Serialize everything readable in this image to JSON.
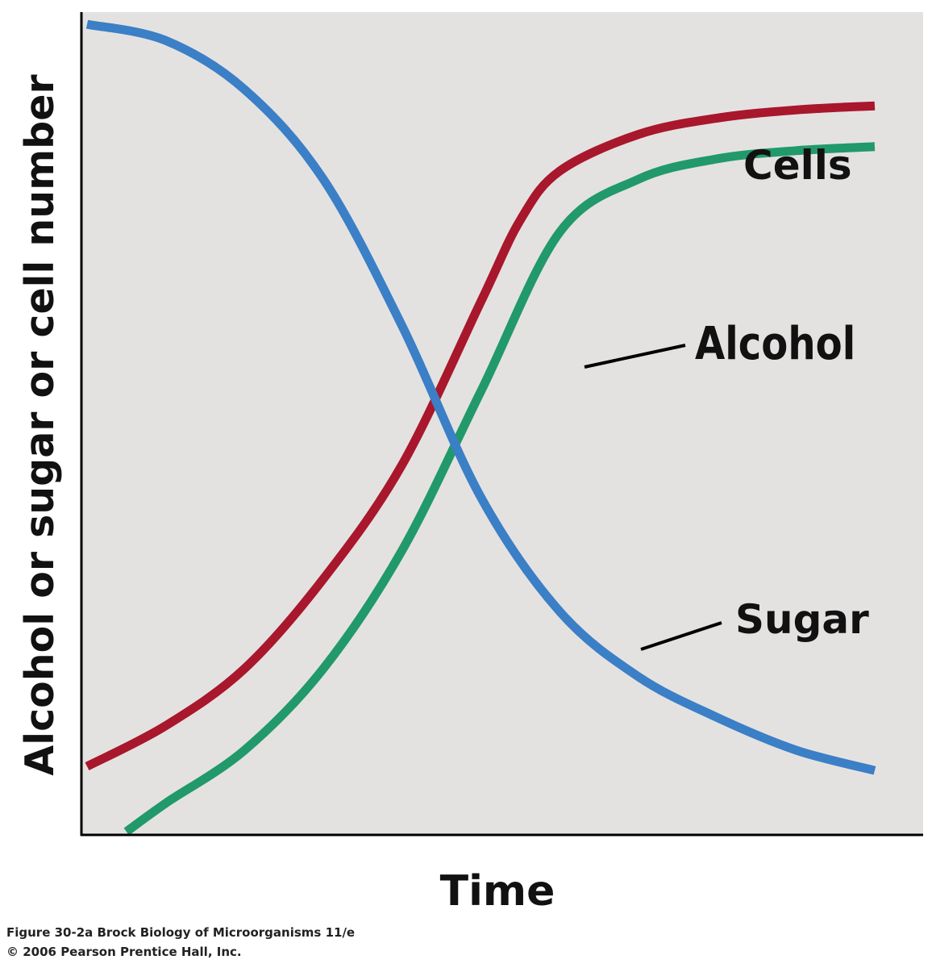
{
  "figure": {
    "caption_line1": "Figure 30-2a  Brock Biology of Microorganisms 11/e",
    "caption_line2": "© 2006 Pearson Prentice Hall, Inc."
  },
  "chart_data": {
    "type": "line",
    "xlabel": "Time",
    "ylabel": "Alcohol or sugar or cell number",
    "grid": false,
    "xlim": [
      0,
      10
    ],
    "ylim": [
      0,
      10
    ],
    "background": "#e4e2e1",
    "series": [
      {
        "name": "Cells",
        "color": "#a8172c",
        "x": [
          0,
          1,
          2,
          3,
          4,
          5,
          5.5,
          6,
          7,
          8,
          9,
          10
        ],
        "y": [
          0.8,
          1.3,
          2.0,
          3.1,
          4.5,
          6.5,
          7.5,
          8.1,
          8.55,
          8.75,
          8.85,
          8.9
        ]
      },
      {
        "name": "Alcohol",
        "color": "#21996b",
        "x": [
          0.5,
          1,
          2,
          3,
          4,
          5,
          6,
          7,
          8,
          9,
          10
        ],
        "y": [
          0.0,
          0.35,
          1.0,
          2.0,
          3.45,
          5.4,
          7.35,
          8.0,
          8.25,
          8.35,
          8.4
        ]
      },
      {
        "name": "Sugar",
        "color": "#3b7fc6",
        "x": [
          0,
          1,
          2,
          3,
          4,
          5,
          6,
          7,
          8,
          9,
          10
        ],
        "y": [
          9.9,
          9.7,
          9.1,
          8.0,
          6.2,
          4.1,
          2.7,
          1.9,
          1.4,
          1.0,
          0.75
        ]
      }
    ]
  }
}
